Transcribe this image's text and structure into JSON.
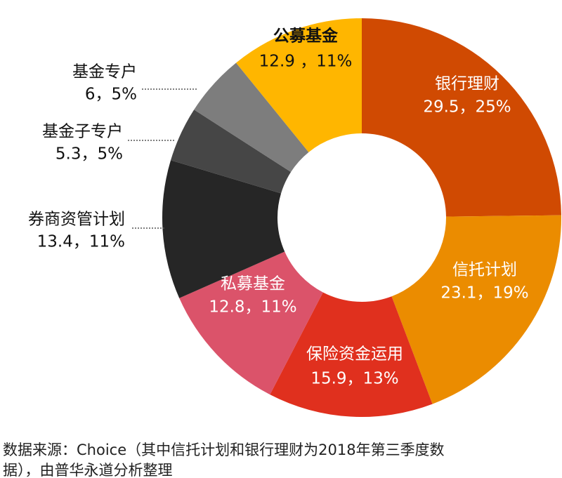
{
  "chart_data": {
    "type": "donut",
    "categories": [
      "银行理财",
      "信托计划",
      "保险资金运用",
      "私募基金",
      "券商资管计划",
      "基金子专户",
      "基金专户",
      "公募基金"
    ],
    "values": [
      29.5,
      23.1,
      15.9,
      12.8,
      13.4,
      5.3,
      6,
      12.9
    ],
    "value_labels": [
      "29.5，25%",
      "23.1，19%",
      "15.9，13%",
      "12.8，11%",
      "13.4，11%",
      "5.3，5%",
      "6，5%",
      "12.9 ，11%"
    ],
    "colors": [
      "#d04a02",
      "#eb8c00",
      "#e0301e",
      "#db536a",
      "#262626",
      "#464646",
      "#7d7d7d",
      "#ffb600"
    ]
  },
  "source": [
    "数据来源：Choice（其中信托计划和银行理财为2018年第三季度数",
    "据），由普华永道分析整理"
  ]
}
